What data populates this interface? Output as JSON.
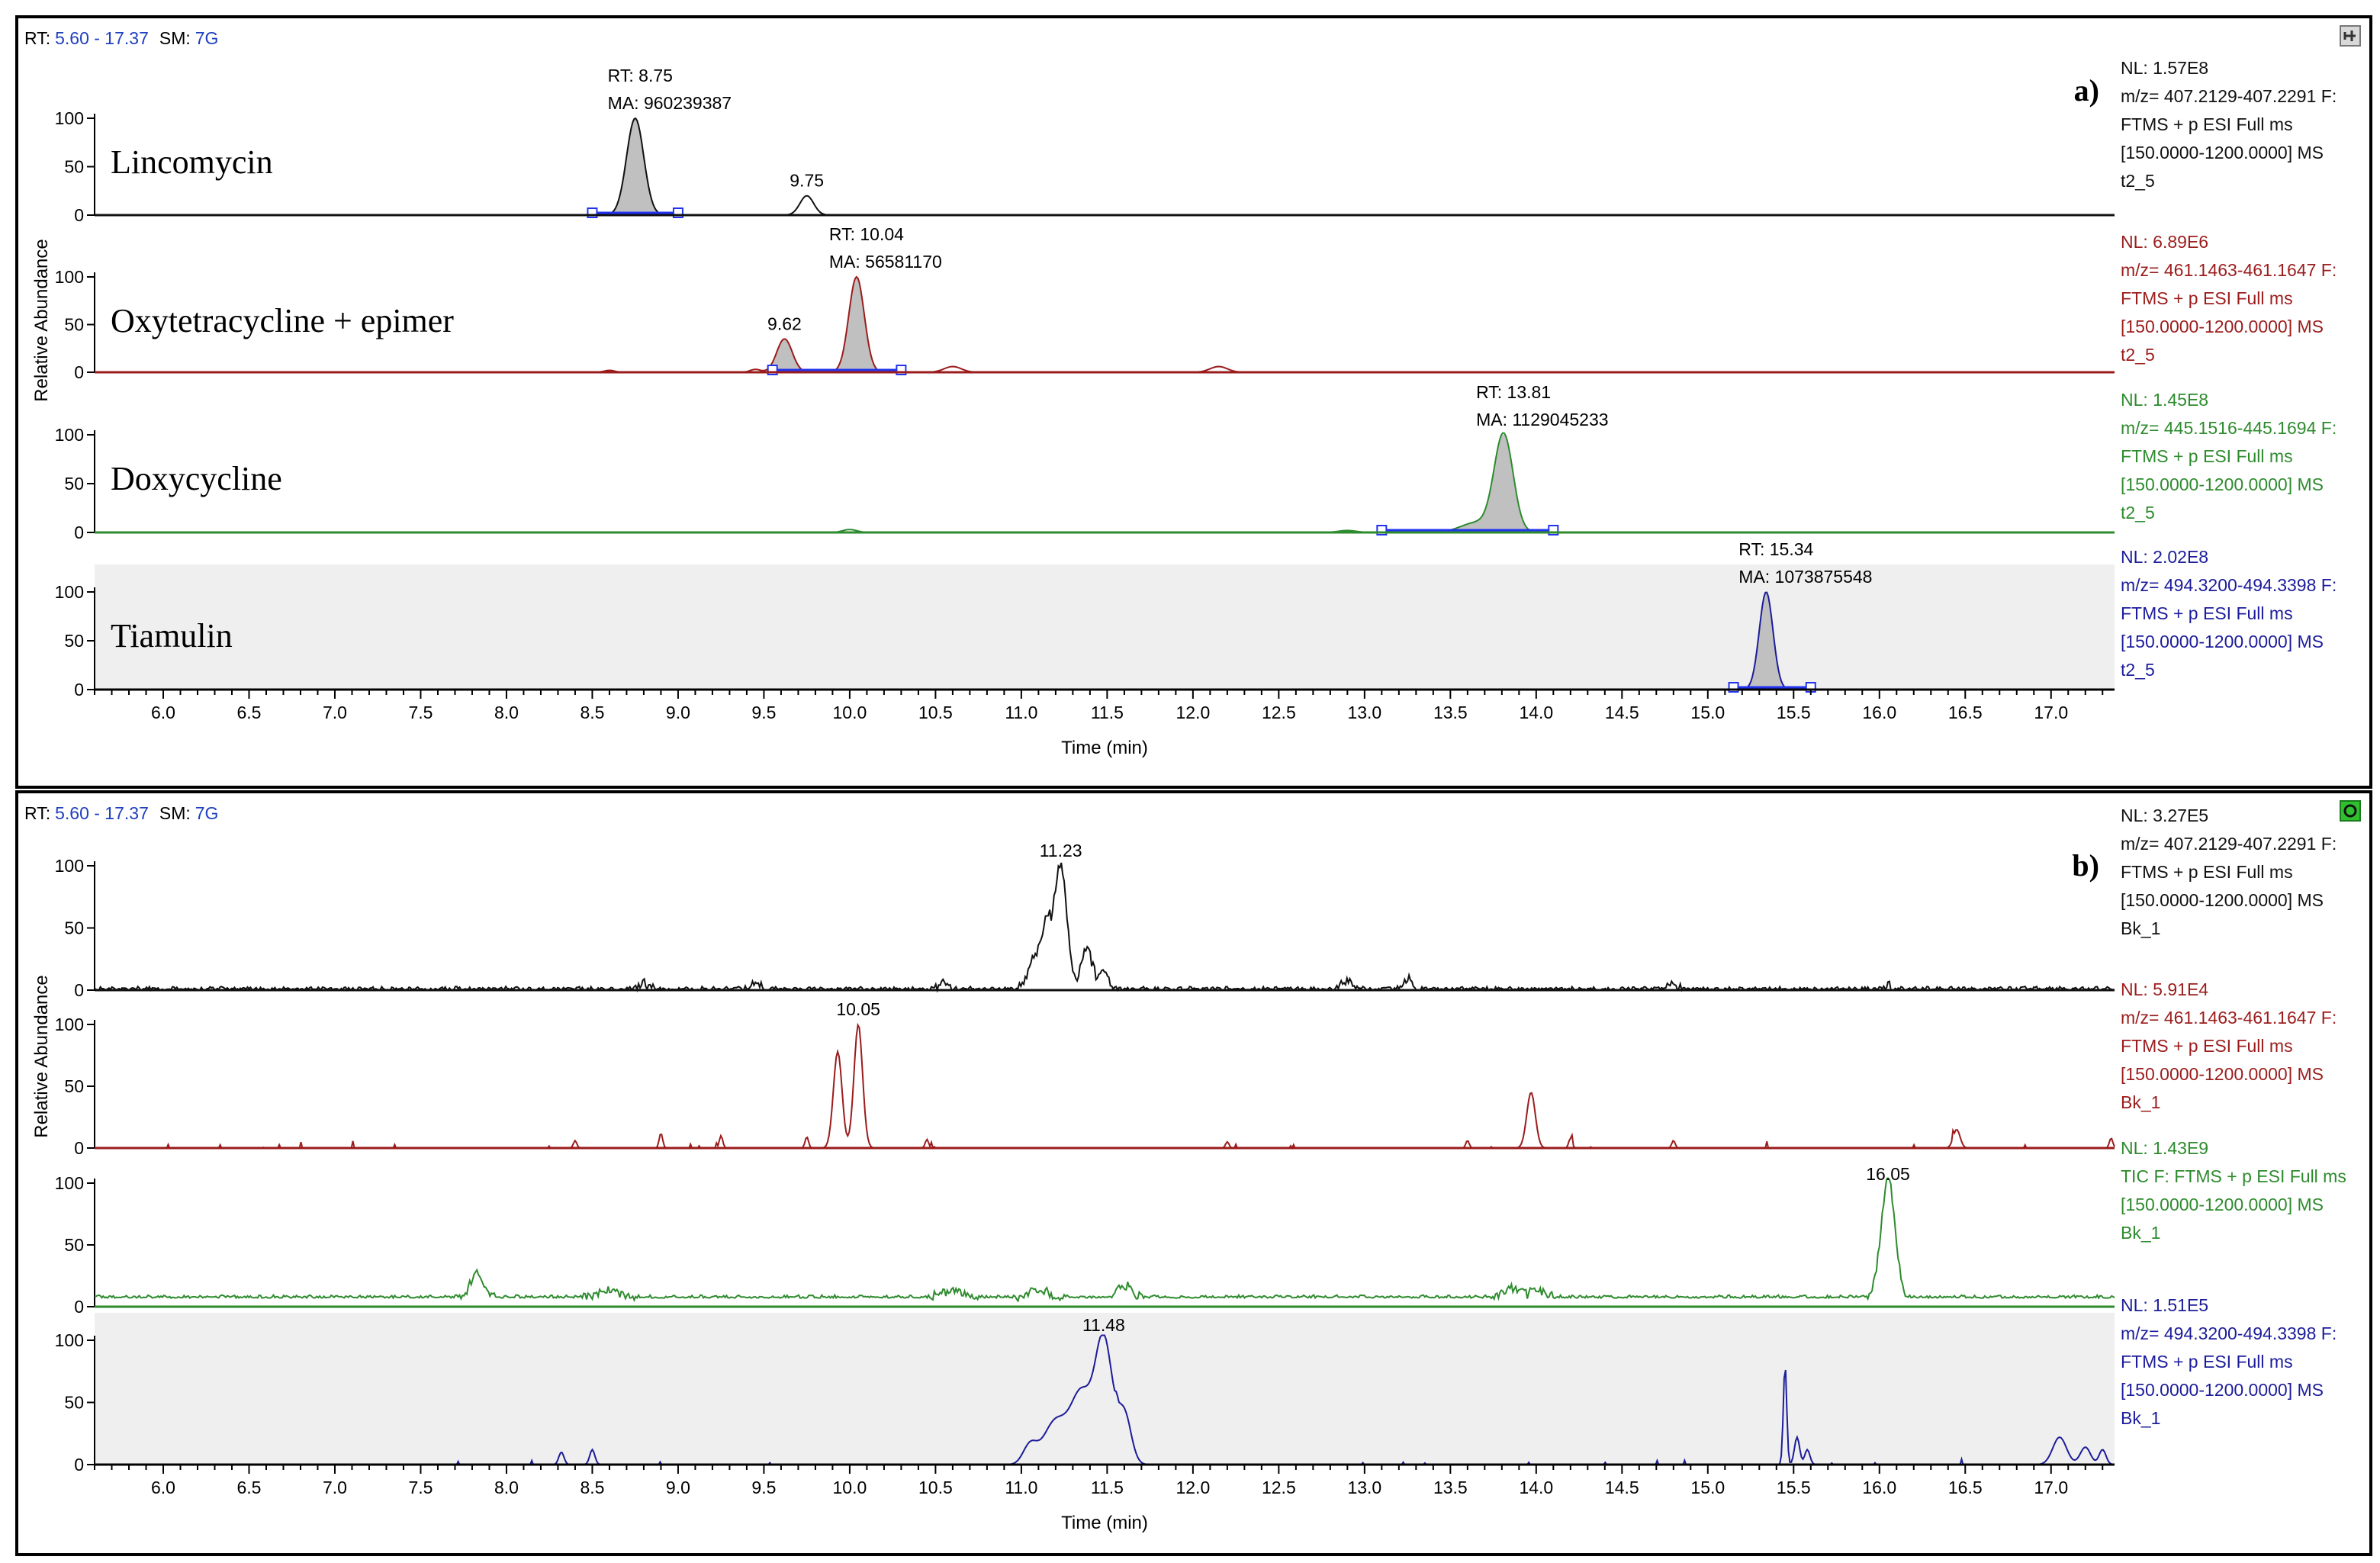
{
  "colors": {
    "black": "#111111",
    "red": "#9b1c1c",
    "green": "#2e8b2e",
    "blue": "#1c1c9b",
    "header_blue": "#1f3fbf",
    "peak_fill": "#c0c0c0",
    "shade": "#efefef",
    "baseline_blue": "#2233ee"
  },
  "x_axis": {
    "min": 5.6,
    "max": 17.37,
    "label": "Time (min)",
    "tick_step": 0.5,
    "label_ticks": [
      "6.0",
      "6.5",
      "7.0",
      "7.5",
      "8.0",
      "8.5",
      "9.0",
      "9.5",
      "10.0",
      "10.5",
      "11.0",
      "11.5",
      "12.0",
      "12.5",
      "13.0",
      "13.5",
      "14.0",
      "14.5",
      "15.0",
      "15.5",
      "16.0",
      "16.5",
      "17.0"
    ]
  },
  "y_axis": {
    "label": "Relative Abundance",
    "ticks": [
      "100",
      "50",
      "0"
    ]
  },
  "chart_data": [
    {
      "id": "a",
      "type": "line",
      "panel_label": "a)",
      "header": {
        "rt_prefix": "RT:",
        "rt_range": "5.60 - 17.37",
        "sm_prefix": "SM:",
        "sm_value": "7G"
      },
      "corner_icon": "pin-icon",
      "xlabel": "Time (min)",
      "ylabel": "Relative Abundance",
      "traces": [
        {
          "name": "Lincomycin",
          "color": "black",
          "shaded": false,
          "info": [
            "NL: 1.57E8",
            "m/z= 407.2129-407.2291 F:",
            "FTMS + p ESI Full ms",
            "[150.0000-1200.0000]  MS",
            "t2_5"
          ],
          "peaks": [
            {
              "rt": 8.75,
              "h": 100,
              "w": 0.05,
              "fill": true
            },
            {
              "rt": 9.75,
              "h": 20,
              "w": 0.04,
              "fill": false
            }
          ],
          "integration": {
            "start": 8.5,
            "end": 9.0
          },
          "annotations": [
            {
              "rt": 8.75,
              "lines": [
                "RT: 8.75",
                "MA: 960239387"
              ]
            },
            {
              "rt": 9.75,
              "lines": [
                "9.75"
              ]
            }
          ]
        },
        {
          "name": "Oxytetracycline + epimer",
          "color": "red",
          "shaded": false,
          "info": [
            "NL: 6.89E6",
            "m/z= 461.1463-461.1647 F:",
            "FTMS + p ESI Full ms",
            "[150.0000-1200.0000]  MS",
            "t2_5"
          ],
          "peaks": [
            {
              "rt": 10.04,
              "h": 100,
              "w": 0.045,
              "fill": true
            },
            {
              "rt": 9.62,
              "h": 35,
              "w": 0.045,
              "fill": true
            },
            {
              "rt": 10.6,
              "h": 6,
              "w": 0.05,
              "fill": false
            },
            {
              "rt": 12.15,
              "h": 6,
              "w": 0.05,
              "fill": false
            },
            {
              "rt": 9.45,
              "h": 3,
              "w": 0.03,
              "fill": false
            },
            {
              "rt": 8.6,
              "h": 2,
              "w": 0.03,
              "fill": false
            }
          ],
          "integration": {
            "start": 9.55,
            "end": 10.3
          },
          "annotations": [
            {
              "rt": 10.04,
              "lines": [
                "RT: 10.04",
                "MA: 56581170"
              ]
            },
            {
              "rt": 9.62,
              "lines": [
                "9.62"
              ]
            }
          ]
        },
        {
          "name": "Doxycycline",
          "color": "green",
          "shaded": false,
          "info": [
            "NL: 1.45E8",
            "m/z= 445.1516-445.1694 F:",
            "FTMS + p ESI Full ms",
            "[150.0000-1200.0000]  MS",
            "t2_5"
          ],
          "peaks": [
            {
              "rt": 13.81,
              "h": 100,
              "w": 0.055,
              "fill": true
            },
            {
              "rt": 13.65,
              "h": 10,
              "w": 0.09,
              "fill": true
            },
            {
              "rt": 10.0,
              "h": 3,
              "w": 0.04,
              "fill": false
            },
            {
              "rt": 12.9,
              "h": 2,
              "w": 0.05,
              "fill": false
            }
          ],
          "integration": {
            "start": 13.1,
            "end": 14.1
          },
          "annotations": [
            {
              "rt": 13.81,
              "lines": [
                "RT: 13.81",
                "MA: 1129045233"
              ]
            }
          ]
        },
        {
          "name": "Tiamulin",
          "color": "blue",
          "shaded": true,
          "info": [
            "NL: 2.02E8",
            "m/z= 494.3200-494.3398 F:",
            "FTMS + p ESI Full ms",
            "[150.0000-1200.0000]  MS",
            "t2_5"
          ],
          "peaks": [
            {
              "rt": 15.34,
              "h": 100,
              "w": 0.04,
              "fill": true
            }
          ],
          "integration": {
            "start": 15.15,
            "end": 15.6
          },
          "annotations": [
            {
              "rt": 15.34,
              "lines": [
                "RT: 15.34",
                "MA: 1073875548"
              ]
            }
          ]
        }
      ]
    },
    {
      "id": "b",
      "type": "line",
      "panel_label": "b)",
      "header": {
        "rt_prefix": "RT:",
        "rt_range": "5.60 - 17.37",
        "sm_prefix": "SM:",
        "sm_value": "7G"
      },
      "corner_icon": "refresh-icon",
      "xlabel": "Time (min)",
      "ylabel": "Relative Abundance",
      "traces": [
        {
          "name": "",
          "color": "black",
          "shaded": false,
          "info": [
            "NL: 3.27E5",
            "m/z= 407.2129-407.2291 F:",
            "FTMS + p ESI Full ms",
            "[150.0000-1200.0000]  MS",
            "Bk_1"
          ],
          "baseline": 0,
          "noise": 3,
          "seed": 11,
          "peaks": [
            {
              "rt": 11.23,
              "h": 100,
              "w": 0.035
            },
            {
              "rt": 11.15,
              "h": 45,
              "w": 0.03
            },
            {
              "rt": 11.08,
              "h": 25,
              "w": 0.04
            },
            {
              "rt": 11.38,
              "h": 33,
              "w": 0.03
            },
            {
              "rt": 11.48,
              "h": 12,
              "w": 0.03
            },
            {
              "rt": 13.25,
              "h": 8,
              "w": 0.02
            },
            {
              "rt": 10.55,
              "h": 6,
              "w": 0.02
            },
            {
              "rt": 8.8,
              "h": 5,
              "w": 0.02
            },
            {
              "rt": 9.45,
              "h": 6,
              "w": 0.02
            },
            {
              "rt": 12.9,
              "h": 6,
              "w": 0.03
            },
            {
              "rt": 16.05,
              "h": 5,
              "w": 0.01
            },
            {
              "rt": 14.8,
              "h": 5,
              "w": 0.02
            }
          ],
          "annotations": [
            {
              "rt": 11.23,
              "lines": [
                "11.23"
              ]
            }
          ]
        },
        {
          "name": "",
          "color": "red",
          "shaded": false,
          "info": [
            "NL: 5.91E4",
            "m/z= 461.1463-461.1647 F:",
            "FTMS + p ESI Full ms",
            "[150.0000-1200.0000]  MS",
            "Bk_1"
          ],
          "baseline": 0,
          "noise": 2,
          "seed": 23,
          "sparse": true,
          "peaks": [
            {
              "rt": 10.05,
              "h": 100,
              "w": 0.025
            },
            {
              "rt": 9.93,
              "h": 78,
              "w": 0.025
            },
            {
              "rt": 13.97,
              "h": 45,
              "w": 0.025
            },
            {
              "rt": 16.45,
              "h": 15,
              "w": 0.02
            },
            {
              "rt": 8.9,
              "h": 12,
              "w": 0.01
            },
            {
              "rt": 9.25,
              "h": 10,
              "w": 0.01
            },
            {
              "rt": 9.75,
              "h": 9,
              "w": 0.01
            },
            {
              "rt": 14.2,
              "h": 8,
              "w": 0.01
            },
            {
              "rt": 10.45,
              "h": 7,
              "w": 0.01
            },
            {
              "rt": 8.4,
              "h": 6,
              "w": 0.01
            },
            {
              "rt": 14.8,
              "h": 6,
              "w": 0.01
            },
            {
              "rt": 13.6,
              "h": 6,
              "w": 0.01
            },
            {
              "rt": 12.2,
              "h": 5,
              "w": 0.01
            },
            {
              "rt": 17.35,
              "h": 8,
              "w": 0.01
            }
          ],
          "annotations": [
            {
              "rt": 10.05,
              "lines": [
                "10.05"
              ]
            }
          ]
        },
        {
          "name": "",
          "color": "green",
          "shaded": false,
          "info": [
            "NL: 1.43E9",
            "TIC F: FTMS + p ESI Full ms",
            "[150.0000-1200.0000]  MS",
            "Bk_1"
          ],
          "baseline": 7,
          "noise": 2.5,
          "seed": 37,
          "peaks": [
            {
              "rt": 16.05,
              "h": 95,
              "w": 0.04
            },
            {
              "rt": 7.83,
              "h": 20,
              "w": 0.035
            },
            {
              "rt": 11.6,
              "h": 9,
              "w": 0.04
            },
            {
              "rt": 13.85,
              "h": 8,
              "w": 0.04
            },
            {
              "rt": 8.6,
              "h": 6,
              "w": 0.05
            },
            {
              "rt": 10.6,
              "h": 5,
              "w": 0.05
            },
            {
              "rt": 11.1,
              "h": 6,
              "w": 0.05
            },
            {
              "rt": 14.0,
              "h": 5,
              "w": 0.05
            }
          ],
          "annotations": [
            {
              "rt": 16.05,
              "lines": [
                "16.05"
              ]
            }
          ]
        },
        {
          "name": "",
          "color": "blue",
          "shaded": true,
          "info": [
            "NL: 1.51E5",
            "m/z= 494.3200-494.3398 F:",
            "FTMS + p ESI Full ms",
            "[150.0000-1200.0000]  MS",
            "Bk_1"
          ],
          "baseline": 0,
          "noise": 1.5,
          "seed": 53,
          "sparse": true,
          "peaks": [
            {
              "rt": 11.48,
              "h": 100,
              "w": 0.05
            },
            {
              "rt": 11.35,
              "h": 55,
              "w": 0.06
            },
            {
              "rt": 11.2,
              "h": 35,
              "w": 0.07
            },
            {
              "rt": 11.05,
              "h": 15,
              "w": 0.04
            },
            {
              "rt": 11.6,
              "h": 40,
              "w": 0.04
            },
            {
              "rt": 15.45,
              "h": 80,
              "w": 0.01
            },
            {
              "rt": 15.52,
              "h": 22,
              "w": 0.015
            },
            {
              "rt": 15.58,
              "h": 12,
              "w": 0.015
            },
            {
              "rt": 17.05,
              "h": 22,
              "w": 0.04
            },
            {
              "rt": 17.2,
              "h": 14,
              "w": 0.03
            },
            {
              "rt": 17.3,
              "h": 12,
              "w": 0.02
            },
            {
              "rt": 8.32,
              "h": 10,
              "w": 0.015
            },
            {
              "rt": 8.5,
              "h": 12,
              "w": 0.015
            }
          ],
          "annotations": [
            {
              "rt": 11.48,
              "lines": [
                "11.48"
              ]
            }
          ]
        }
      ]
    }
  ]
}
